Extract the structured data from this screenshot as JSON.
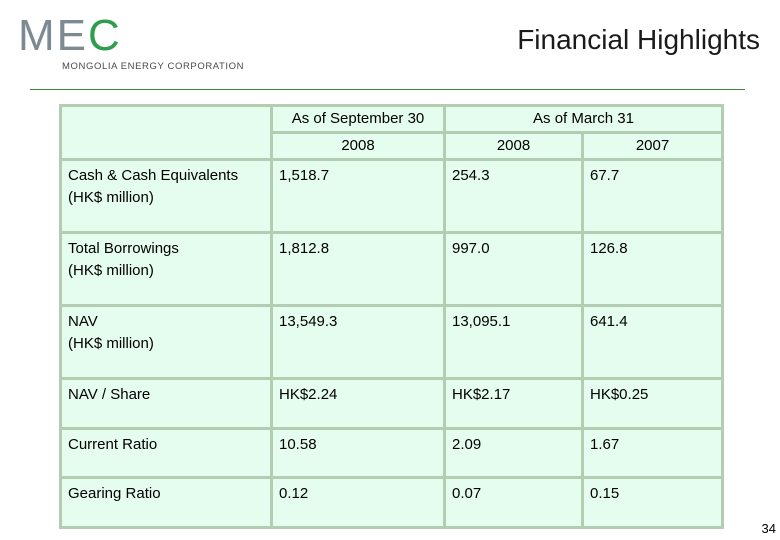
{
  "logo": {
    "letters_gray": "ME",
    "letters_green": "C",
    "company": "MONGOLIA ENERGY CORPORATION"
  },
  "title": "Financial Highlights",
  "table": {
    "header_period_1": "As of September 30",
    "header_period_2": "As of March 31",
    "year_col_1": "2008",
    "year_col_2": "2008",
    "year_col_3": "2007",
    "rows": [
      {
        "label": "Cash & Cash Equivalents",
        "unit": "(HK$ million)",
        "values": [
          "1,518.7",
          "254.3",
          "67.7"
        ]
      },
      {
        "label": "Total Borrowings",
        "unit": "(HK$ million)",
        "values": [
          "1,812.8",
          "997.0",
          "126.8"
        ]
      },
      {
        "label": "NAV",
        "unit": "(HK$ million)",
        "values": [
          "13,549.3",
          "13,095.1",
          "641.4"
        ]
      },
      {
        "label": "NAV / Share",
        "unit": "",
        "values": [
          "HK$2.24",
          "HK$2.17",
          "HK$0.25"
        ]
      },
      {
        "label": "Current Ratio",
        "unit": "",
        "values": [
          "10.58",
          "2.09",
          "1.67"
        ]
      },
      {
        "label": "Gearing Ratio",
        "unit": "",
        "values": [
          "0.12",
          "0.07",
          "0.15"
        ]
      }
    ]
  },
  "page_number": "34",
  "colors": {
    "cell_background": "#e5fdee",
    "cell_border": "#b2cdb2",
    "logo_gray": "#7d8a92",
    "logo_green": "#2e9d4e"
  }
}
